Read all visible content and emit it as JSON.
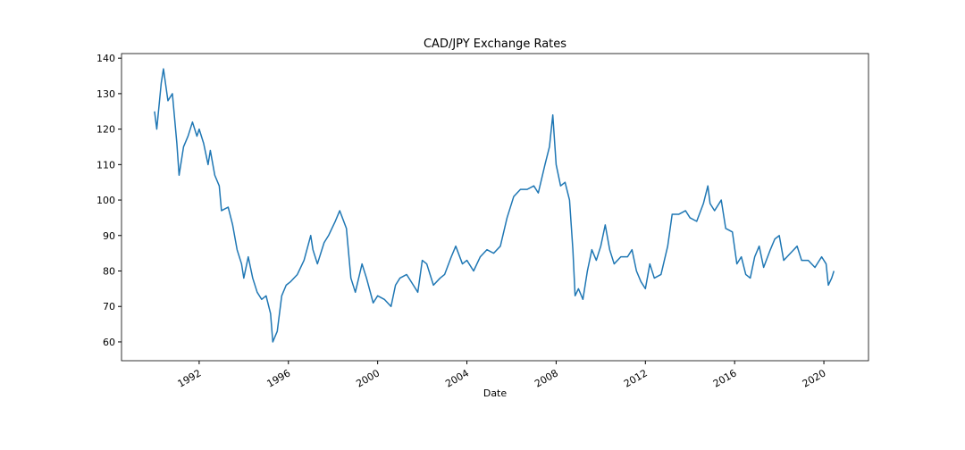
{
  "chart_data": {
    "type": "line",
    "title": "CAD/JPY Exchange Rates",
    "xlabel": "Date",
    "xlim": [
      1988.52,
      2022.0
    ],
    "ylim": [
      54.7,
      141.3
    ],
    "xticks": [
      1992,
      1996,
      2000,
      2004,
      2008,
      2012,
      2016,
      2020
    ],
    "yticks": [
      60,
      70,
      80,
      90,
      100,
      110,
      120,
      130,
      140
    ],
    "grid": false,
    "series": [
      {
        "color": "#1f77b4",
        "x": [
          1990.0,
          1990.1,
          1990.3,
          1990.4,
          1990.6,
          1990.8,
          1991.0,
          1991.1,
          1991.3,
          1991.5,
          1991.7,
          1991.9,
          1992.0,
          1992.2,
          1992.4,
          1992.5,
          1992.7,
          1992.9,
          1993.0,
          1993.3,
          1993.5,
          1993.7,
          1993.9,
          1994.0,
          1994.2,
          1994.4,
          1994.6,
          1994.8,
          1995.0,
          1995.2,
          1995.3,
          1995.5,
          1995.7,
          1995.9,
          1996.1,
          1996.4,
          1996.7,
          1997.0,
          1997.1,
          1997.3,
          1997.6,
          1997.8,
          1998.1,
          1998.3,
          1998.6,
          1998.8,
          1999.0,
          1999.3,
          1999.5,
          1999.8,
          2000.0,
          2000.3,
          2000.6,
          2000.8,
          2001.0,
          2001.3,
          2001.6,
          2001.8,
          2002.0,
          2002.2,
          2002.5,
          2002.8,
          2003.0,
          2003.3,
          2003.5,
          2003.8,
          2004.0,
          2004.3,
          2004.6,
          2004.9,
          2005.2,
          2005.5,
          2005.8,
          2006.1,
          2006.4,
          2006.7,
          2007.0,
          2007.2,
          2007.5,
          2007.7,
          2007.85,
          2008.0,
          2008.2,
          2008.4,
          2008.6,
          2008.75,
          2008.85,
          2009.0,
          2009.2,
          2009.4,
          2009.6,
          2009.8,
          2010.0,
          2010.2,
          2010.4,
          2010.6,
          2010.9,
          2011.2,
          2011.4,
          2011.6,
          2011.8,
          2012.0,
          2012.2,
          2012.4,
          2012.7,
          2013.0,
          2013.2,
          2013.5,
          2013.8,
          2014.0,
          2014.3,
          2014.6,
          2014.8,
          2014.9,
          2015.1,
          2015.4,
          2015.6,
          2015.9,
          2016.1,
          2016.3,
          2016.5,
          2016.7,
          2016.9,
          2017.1,
          2017.3,
          2017.6,
          2017.8,
          2018.0,
          2018.2,
          2018.5,
          2018.8,
          2019.0,
          2019.3,
          2019.6,
          2019.9,
          2020.1,
          2020.2,
          2020.35,
          2020.45
        ],
        "values": [
          125,
          120,
          133,
          137,
          128,
          130,
          116,
          107,
          115,
          118,
          122,
          118,
          120,
          116,
          110,
          114,
          107,
          104,
          97,
          98,
          93,
          86,
          82,
          78,
          84,
          78,
          74,
          72,
          73,
          68,
          60,
          63,
          73,
          76,
          77,
          79,
          83,
          90,
          86,
          82,
          88,
          90,
          94,
          97,
          92,
          78,
          74,
          82,
          78,
          71,
          73,
          72,
          70,
          76,
          78,
          79,
          76,
          74,
          83,
          82,
          76,
          78,
          79,
          84,
          87,
          82,
          83,
          80,
          84,
          86,
          85,
          87,
          95,
          101,
          103,
          103,
          104,
          102,
          110,
          115,
          124,
          110,
          104,
          105,
          100,
          86,
          73,
          75,
          72,
          80,
          86,
          83,
          87,
          93,
          86,
          82,
          84,
          84,
          86,
          80,
          77,
          75,
          82,
          78,
          79,
          87,
          96,
          96,
          97,
          95,
          94,
          99,
          104,
          99,
          97,
          100,
          92,
          91,
          82,
          84,
          79,
          78,
          84,
          87,
          81,
          86,
          89,
          90,
          83,
          85,
          87,
          83,
          83,
          81,
          84,
          82,
          76,
          78,
          80
        ]
      }
    ]
  }
}
